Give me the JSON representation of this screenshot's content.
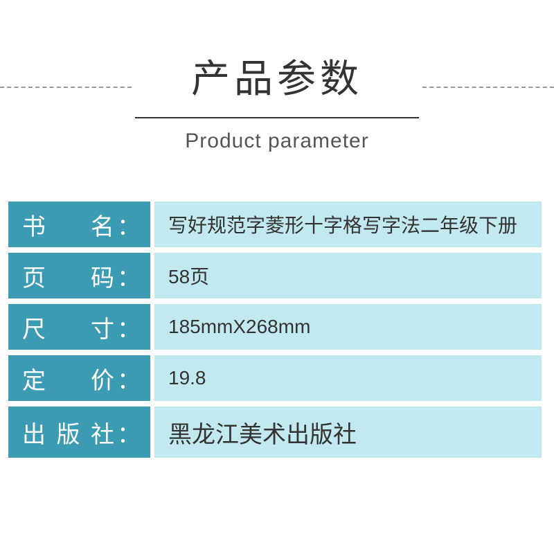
{
  "header": {
    "title_cn": "产品参数",
    "title_en": "Product parameter"
  },
  "colors": {
    "label_bg": "#3b9bb3",
    "value_bg": "#c2e8f0",
    "dashed": "#999999"
  },
  "rows": [
    {
      "label_chars": [
        "书",
        "名"
      ],
      "value": "写好规范字菱形十字格写字法二年级下册"
    },
    {
      "label_chars": [
        "页",
        "码"
      ],
      "value": "58页"
    },
    {
      "label_chars": [
        "尺",
        "寸"
      ],
      "value": "185mmX268mm"
    },
    {
      "label_chars": [
        "定",
        "价"
      ],
      "value": "19.8"
    },
    {
      "label_chars": [
        "出",
        "版",
        "社"
      ],
      "value": "黑龙江美术出版社"
    }
  ]
}
